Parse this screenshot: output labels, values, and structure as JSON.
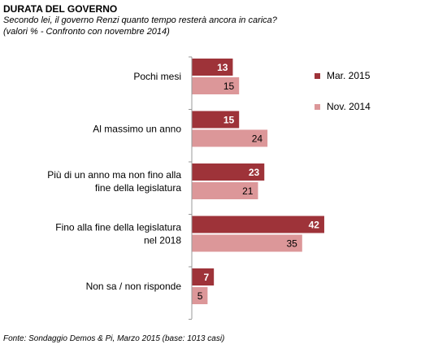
{
  "title": "DURATA DEL GOVERNO",
  "subtitle_line1": "Secondo lei, il governo Renzi quanto tempo resterà ancora in carica?",
  "subtitle_line2": "(valori % - Confronto con novembre 2014)",
  "source": "Fonte: Sondaggio Demos & Pi, Marzo 2015 (base: 1013 casi)",
  "chart_data": {
    "type": "bar",
    "orientation": "horizontal",
    "categories": [
      [
        "Pochi mesi"
      ],
      [
        "Al massimo un anno"
      ],
      [
        "Più di un anno ma non fino alla",
        "fine della legislatura"
      ],
      [
        "Fino alla fine della legislatura",
        "nel 2018"
      ],
      [
        "Non sa / non risponde"
      ]
    ],
    "series": [
      {
        "name": "Mar. 2015",
        "color": "#9e3339",
        "label_color": "#ffffff",
        "values": [
          13,
          15,
          23,
          42,
          7
        ]
      },
      {
        "name": "Nov. 2014",
        "color": "#dc9799",
        "label_color": "#000000",
        "values": [
          15,
          24,
          21,
          35,
          5
        ]
      }
    ],
    "xlim": [
      0,
      50
    ],
    "grid": false,
    "legend_position": "right"
  }
}
